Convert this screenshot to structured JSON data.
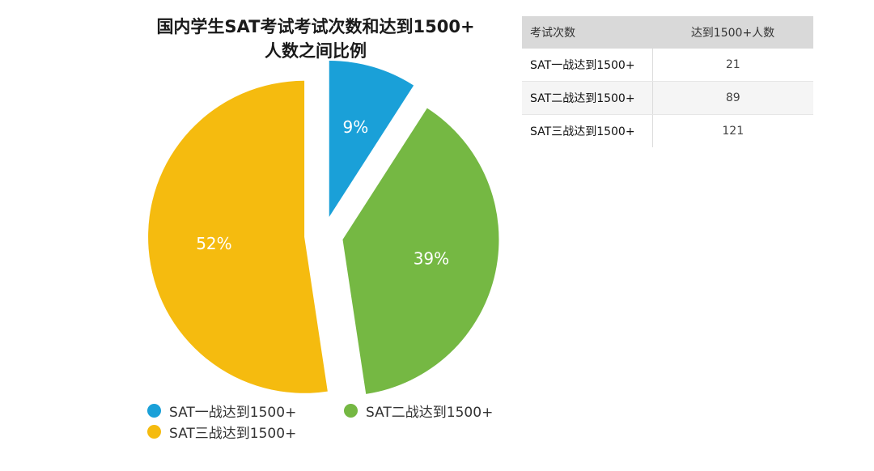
{
  "chart_data": {
    "type": "pie",
    "title_line1": "国内学生SAT考试考试次数和达到1500+",
    "title_line2": "人数之间比例",
    "slices": [
      {
        "name": "SAT一战达到1500+",
        "value": 21,
        "percent_label": "9%",
        "color": "#1aa0d8"
      },
      {
        "name": "SAT二战达到1500+",
        "value": 89,
        "percent_label": "39%",
        "color": "#75b843"
      },
      {
        "name": "SAT三战达到1500+",
        "value": 121,
        "percent_label": "52%",
        "color": "#f5bb0f"
      }
    ],
    "legend_placement": "bottom"
  },
  "table": {
    "header_name": "考试次数",
    "header_count": "达到1500+人数",
    "rows": [
      {
        "name": "SAT一战达到1500+",
        "count": "21"
      },
      {
        "name": "SAT二战达到1500+",
        "count": "89"
      },
      {
        "name": "SAT三战达到1500+",
        "count": "121"
      }
    ]
  }
}
